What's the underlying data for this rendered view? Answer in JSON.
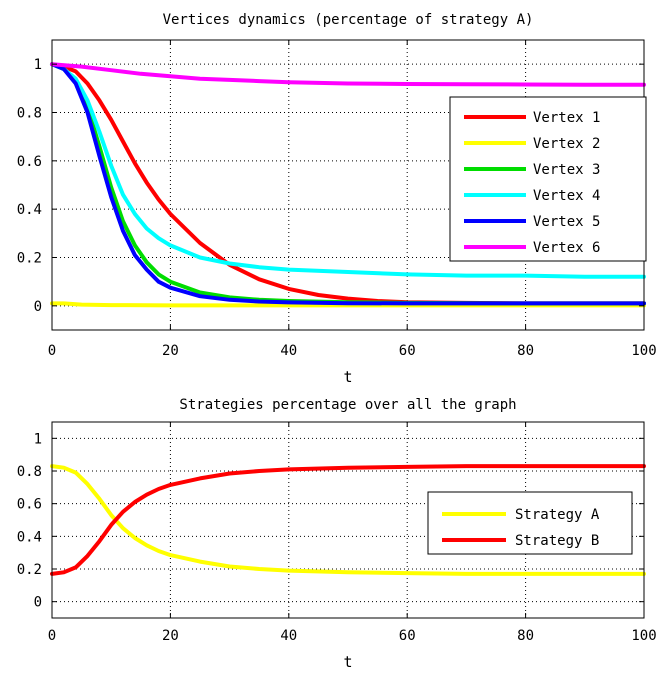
{
  "chart_data": [
    {
      "type": "line",
      "title": "Vertices dynamics (percentage of strategy A)",
      "xlabel": "t",
      "ylabel": "",
      "xlim": [
        0,
        100
      ],
      "ylim": [
        -0.1,
        1.1
      ],
      "xticks": [
        0,
        20,
        40,
        60,
        80,
        100
      ],
      "yticks": [
        0,
        0.2,
        0.4,
        0.6,
        0.8,
        1
      ],
      "ytick_labels": [
        "0",
        "0.2",
        "0.4",
        "0.6",
        "0.8",
        "1"
      ],
      "grid": true,
      "legend_position": "right",
      "series": [
        {
          "name": "Vertex 1",
          "color": "#ff0000",
          "x": [
            0,
            2,
            4,
            6,
            8,
            10,
            12,
            14,
            16,
            18,
            20,
            25,
            30,
            35,
            40,
            45,
            50,
            55,
            60,
            70,
            80,
            90,
            100
          ],
          "y": [
            1,
            0.99,
            0.97,
            0.92,
            0.85,
            0.77,
            0.68,
            0.59,
            0.51,
            0.44,
            0.38,
            0.26,
            0.17,
            0.11,
            0.07,
            0.045,
            0.03,
            0.02,
            0.015,
            0.012,
            0.01,
            0.01,
            0.01
          ]
        },
        {
          "name": "Vertex 2",
          "color": "#ffff00",
          "x": [
            0,
            2,
            5,
            10,
            20,
            40,
            60,
            80,
            100
          ],
          "y": [
            0.01,
            0.01,
            0.005,
            0.003,
            0.002,
            0.002,
            0.002,
            0.002,
            0.002
          ]
        },
        {
          "name": "Vertex 3",
          "color": "#00dd00",
          "x": [
            0,
            2,
            4,
            6,
            8,
            10,
            12,
            14,
            16,
            18,
            20,
            25,
            30,
            35,
            40,
            50,
            60,
            80,
            100
          ],
          "y": [
            1,
            0.98,
            0.93,
            0.82,
            0.66,
            0.49,
            0.35,
            0.25,
            0.18,
            0.13,
            0.1,
            0.055,
            0.035,
            0.025,
            0.02,
            0.015,
            0.012,
            0.01,
            0.01
          ]
        },
        {
          "name": "Vertex 4",
          "color": "#00ffff",
          "x": [
            0,
            2,
            4,
            6,
            8,
            10,
            12,
            14,
            16,
            18,
            20,
            25,
            30,
            35,
            40,
            50,
            60,
            70,
            80,
            90,
            100
          ],
          "y": [
            1,
            0.98,
            0.94,
            0.85,
            0.72,
            0.58,
            0.46,
            0.38,
            0.32,
            0.28,
            0.25,
            0.2,
            0.175,
            0.16,
            0.15,
            0.14,
            0.13,
            0.125,
            0.125,
            0.12,
            0.12
          ]
        },
        {
          "name": "Vertex 5",
          "color": "#0000ff",
          "x": [
            0,
            2,
            4,
            6,
            8,
            10,
            12,
            14,
            16,
            18,
            20,
            25,
            30,
            35,
            40,
            50,
            60,
            80,
            100
          ],
          "y": [
            1,
            0.98,
            0.92,
            0.8,
            0.62,
            0.45,
            0.31,
            0.21,
            0.15,
            0.1,
            0.075,
            0.04,
            0.025,
            0.018,
            0.014,
            0.011,
            0.01,
            0.01,
            0.01
          ]
        },
        {
          "name": "Vertex 6",
          "color": "#ff00ff",
          "x": [
            0,
            5,
            10,
            15,
            20,
            25,
            30,
            35,
            40,
            50,
            60,
            70,
            80,
            90,
            100
          ],
          "y": [
            1,
            0.99,
            0.975,
            0.96,
            0.95,
            0.94,
            0.935,
            0.93,
            0.925,
            0.92,
            0.918,
            0.917,
            0.916,
            0.915,
            0.915
          ]
        }
      ]
    },
    {
      "type": "line",
      "title": "Strategies percentage over all the graph",
      "xlabel": "t",
      "ylabel": "",
      "xlim": [
        0,
        100
      ],
      "ylim": [
        -0.1,
        1.1
      ],
      "xticks": [
        0,
        20,
        40,
        60,
        80,
        100
      ],
      "yticks": [
        0,
        0.2,
        0.4,
        0.6,
        0.8,
        1
      ],
      "ytick_labels": [
        "0",
        "0.2",
        "0.4",
        "0.6",
        "0.8",
        "1"
      ],
      "grid": true,
      "legend_position": "right",
      "series": [
        {
          "name": "Strategy A",
          "color": "#ffff00",
          "x": [
            0,
            2,
            4,
            6,
            8,
            10,
            12,
            14,
            16,
            18,
            20,
            25,
            30,
            35,
            40,
            50,
            60,
            70,
            80,
            90,
            100
          ],
          "y": [
            0.83,
            0.82,
            0.79,
            0.72,
            0.63,
            0.53,
            0.45,
            0.39,
            0.345,
            0.31,
            0.285,
            0.245,
            0.215,
            0.2,
            0.19,
            0.18,
            0.175,
            0.17,
            0.17,
            0.17,
            0.17
          ]
        },
        {
          "name": "Strategy B",
          "color": "#ff0000",
          "x": [
            0,
            2,
            4,
            6,
            8,
            10,
            12,
            14,
            16,
            18,
            20,
            25,
            30,
            35,
            40,
            50,
            60,
            70,
            80,
            90,
            100
          ],
          "y": [
            0.17,
            0.18,
            0.21,
            0.28,
            0.37,
            0.47,
            0.55,
            0.61,
            0.655,
            0.69,
            0.715,
            0.755,
            0.785,
            0.8,
            0.81,
            0.82,
            0.825,
            0.83,
            0.83,
            0.83,
            0.83
          ]
        }
      ]
    }
  ]
}
